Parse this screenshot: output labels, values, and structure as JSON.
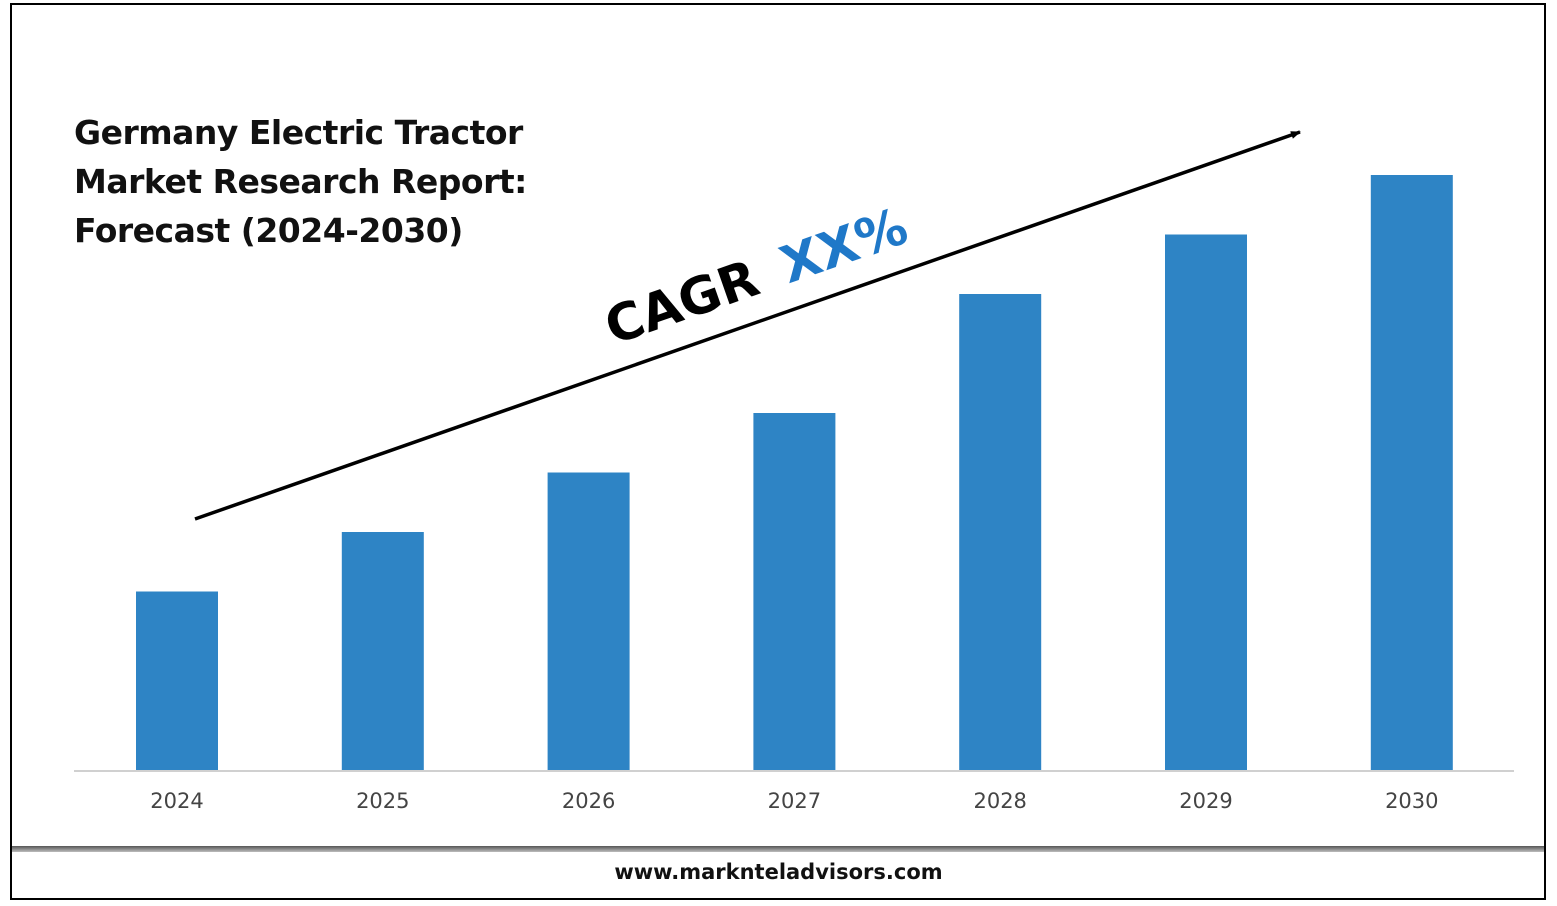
{
  "title": "Germany Electric Tractor Market Research Report: Forecast (2024-2030)",
  "cagr": {
    "prefix": "CAGR",
    "value": "XX%"
  },
  "footer": {
    "url": "www.marknteladvisors.com"
  },
  "colors": {
    "bar": "#2e84c5",
    "cagr_value": "#1f78c8",
    "text": "#111111",
    "axis": "#d0d0d0",
    "tick": "#444444"
  },
  "chart_data": {
    "type": "bar",
    "categories": [
      "2024",
      "2025",
      "2026",
      "2027",
      "2028",
      "2029",
      "2030"
    ],
    "values": [
      30,
      40,
      50,
      60,
      80,
      90,
      100
    ],
    "title": "Germany Electric Tractor Market Research Report: Forecast (2024-2030)",
    "xlabel": "",
    "ylabel": "",
    "ylim": [
      0,
      100
    ],
    "grid": false,
    "legend": "none",
    "annotation": "CAGR XX%"
  }
}
